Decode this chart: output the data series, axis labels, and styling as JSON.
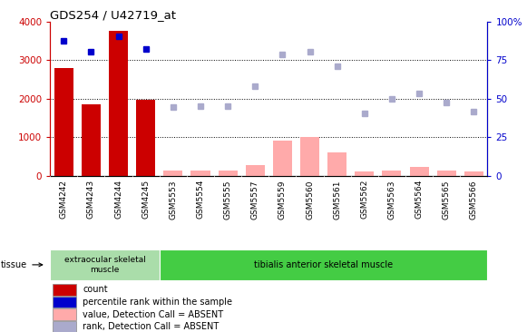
{
  "title": "GDS254 / U42719_at",
  "categories": [
    "GSM4242",
    "GSM4243",
    "GSM4244",
    "GSM4245",
    "GSM5553",
    "GSM5554",
    "GSM5555",
    "GSM5557",
    "GSM5559",
    "GSM5560",
    "GSM5561",
    "GSM5562",
    "GSM5563",
    "GSM5564",
    "GSM5565",
    "GSM5566"
  ],
  "bar_values": [
    2800,
    1850,
    3750,
    1980,
    0,
    0,
    0,
    0,
    0,
    0,
    0,
    0,
    0,
    0,
    0,
    0
  ],
  "bar_absent_values": [
    0,
    0,
    0,
    0,
    130,
    130,
    130,
    270,
    920,
    1020,
    610,
    120,
    150,
    230,
    150,
    110
  ],
  "bar_colors_present": "#cc0000",
  "bar_colors_absent": "#ffaaaa",
  "scatter_present": [
    3500,
    3220,
    3620,
    3290,
    null,
    null,
    null,
    null,
    null,
    null,
    null,
    null,
    null,
    null,
    null,
    null
  ],
  "scatter_absent": [
    null,
    null,
    null,
    null,
    1780,
    1800,
    1800,
    2320,
    3140,
    3220,
    2840,
    1620,
    2000,
    2140,
    1900,
    1660
  ],
  "scatter_present_color": "#0000cc",
  "scatter_absent_color": "#aaaacc",
  "ylim_left": [
    0,
    4000
  ],
  "ylim_right": [
    0,
    100
  ],
  "yticks_left": [
    0,
    1000,
    2000,
    3000,
    4000
  ],
  "ytick_labels_left": [
    "0",
    "1000",
    "2000",
    "3000",
    "4000"
  ],
  "yticks_right": [
    0,
    25,
    50,
    75,
    100
  ],
  "ytick_labels_right": [
    "0",
    "25",
    "50",
    "75",
    "100%"
  ],
  "group1_label": "extraocular skeletal\nmuscle",
  "group2_label": "tibialis anterior skeletal muscle",
  "group1_color": "#aaddaa",
  "group2_color": "#44cc44",
  "tissue_label": "tissue",
  "legend_items": [
    {
      "label": "count",
      "color": "#cc0000"
    },
    {
      "label": "percentile rank within the sample",
      "color": "#0000cc"
    },
    {
      "label": "value, Detection Call = ABSENT",
      "color": "#ffaaaa"
    },
    {
      "label": "rank, Detection Call = ABSENT",
      "color": "#aaaacc"
    }
  ],
  "background_color": "#ffffff",
  "tick_color_left": "#cc0000",
  "tick_color_right": "#0000cc",
  "xtick_bg": "#dddddd",
  "n_group1": 4,
  "n_group2": 12
}
